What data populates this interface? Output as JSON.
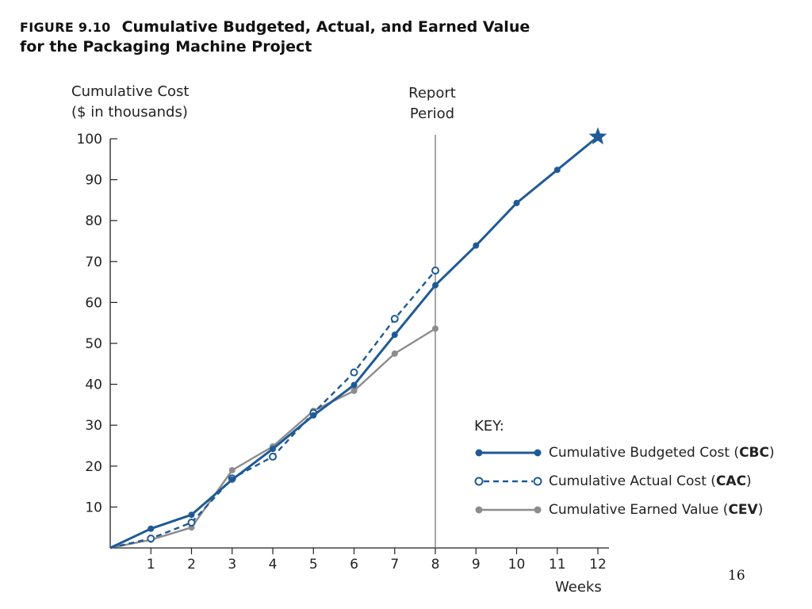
{
  "figure": {
    "number": "FIGURE 9.10",
    "title_line1": "Cumulative Budgeted, Actual, and Earned Value",
    "title_line2": "for the Packaging Machine Project"
  },
  "page_number": "16",
  "chart_data": {
    "type": "line",
    "ylabel_line1": "Cumulative Cost",
    "ylabel_line2": "($ in thousands)",
    "xlabel": "Weeks",
    "x_ticks": [
      "1",
      "2",
      "3",
      "4",
      "5",
      "6",
      "7",
      "8",
      "9",
      "10",
      "11",
      "12"
    ],
    "y_ticks": [
      "10",
      "20",
      "30",
      "40",
      "50",
      "60",
      "70",
      "80",
      "90",
      "100"
    ],
    "xlim": [
      0,
      12
    ],
    "ylim": [
      0,
      100
    ],
    "grid": false,
    "report_period": {
      "x": 8,
      "label_line1": "Report",
      "label_line2": "Period"
    },
    "legend": {
      "title": "KEY:",
      "placement": "bottom-right"
    },
    "series": [
      {
        "key": "cbc",
        "legend_text": "Cumulative Budgeted Cost (",
        "abbr": "CBC",
        "color": "#1f5a96",
        "style": "solid",
        "marker": "filled",
        "x": [
          0,
          1,
          2,
          3,
          4,
          5,
          6,
          7,
          8,
          9,
          10,
          11,
          12
        ],
        "y": [
          0,
          4.7,
          8.1,
          16.7,
          24.2,
          32.4,
          39.8,
          52.1,
          64.2,
          73.9,
          84.3,
          92.4,
          100.5
        ],
        "end_marker": "star"
      },
      {
        "key": "cac",
        "legend_text": "Cumulative Actual Cost (",
        "abbr": "CAC",
        "color": "#1f5a96",
        "style": "dashed",
        "marker": "open",
        "x": [
          0,
          1,
          2,
          3,
          4,
          5,
          6,
          7,
          8
        ],
        "y": [
          0,
          2.3,
          6.2,
          17.0,
          22.3,
          33.0,
          42.9,
          56.0,
          67.8
        ]
      },
      {
        "key": "cev",
        "legend_text": "Cumulative Earned Value (",
        "abbr": "CEV",
        "color": "#8c8c8c",
        "style": "solid",
        "marker": "filled",
        "x": [
          0,
          1,
          2,
          3,
          4,
          5,
          6,
          7,
          8
        ],
        "y": [
          0,
          2.0,
          5.0,
          19.0,
          24.8,
          33.5,
          38.4,
          47.5,
          53.6
        ]
      }
    ]
  }
}
